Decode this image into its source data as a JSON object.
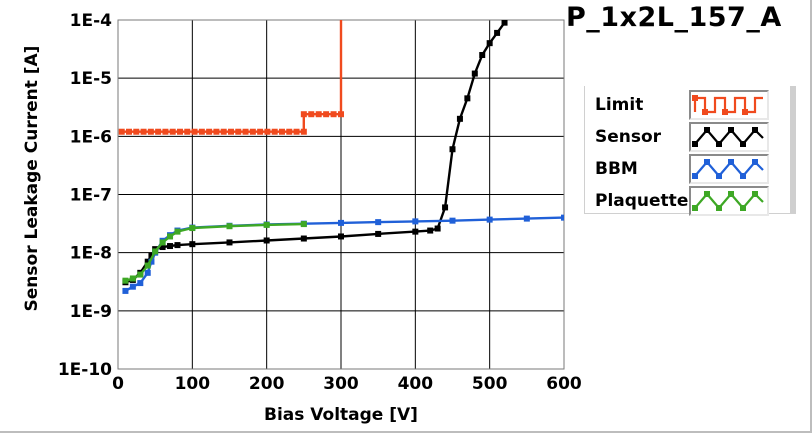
{
  "title": "P_1x2L_157_A",
  "chart_data": {
    "type": "line",
    "xlabel": "Bias Voltage [V]",
    "ylabel": "Sensor Leakage Current [A]",
    "xlim": [
      0,
      600
    ],
    "ylim": [
      1e-10,
      0.0001
    ],
    "yscale": "log",
    "grid": true,
    "legend_position": "right",
    "x_ticks": [
      {
        "value": 0,
        "label": "0"
      },
      {
        "value": 100,
        "label": "100"
      },
      {
        "value": 200,
        "label": "200"
      },
      {
        "value": 300,
        "label": "300"
      },
      {
        "value": 400,
        "label": "400"
      },
      {
        "value": 500,
        "label": "500"
      },
      {
        "value": 600,
        "label": "600"
      }
    ],
    "y_ticks": [
      {
        "value": 0.0001,
        "label": "1E-4"
      },
      {
        "value": 1e-05,
        "label": "1E-5"
      },
      {
        "value": 1e-06,
        "label": "1E-6"
      },
      {
        "value": 1e-07,
        "label": "1E-7"
      },
      {
        "value": 1e-08,
        "label": "1E-8"
      },
      {
        "value": 1e-09,
        "label": "1E-9"
      },
      {
        "value": 1e-10,
        "label": "1E-10"
      }
    ],
    "series": [
      {
        "name": "Limit",
        "color": "#f04a1e",
        "step": true,
        "x": [
          5,
          250,
          250,
          300,
          300
        ],
        "y": [
          1.2e-06,
          1.2e-06,
          2.4e-06,
          2.4e-06,
          0.0001
        ]
      },
      {
        "name": "Sensor",
        "color": "#000000",
        "step": false,
        "x": [
          10,
          20,
          30,
          40,
          45,
          50,
          60,
          70,
          80,
          100,
          150,
          200,
          250,
          300,
          350,
          400,
          420,
          430,
          440,
          450,
          460,
          470,
          480,
          490,
          500,
          510,
          520
        ],
        "y": [
          3.1e-09,
          3.4e-09,
          4.5e-09,
          7e-09,
          9e-09,
          1.15e-08,
          1.25e-08,
          1.3e-08,
          1.35e-08,
          1.4e-08,
          1.5e-08,
          1.62e-08,
          1.75e-08,
          1.9e-08,
          2.1e-08,
          2.3e-08,
          2.4e-08,
          2.6e-08,
          6e-08,
          6e-07,
          2e-06,
          4.5e-06,
          1.2e-05,
          2.5e-05,
          4e-05,
          6e-05,
          9e-05
        ]
      },
      {
        "name": "BBM",
        "color": "#2060d8",
        "step": false,
        "x": [
          10,
          20,
          30,
          40,
          45,
          50,
          60,
          70,
          80,
          100,
          150,
          200,
          250,
          300,
          350,
          400,
          450,
          500,
          550,
          600
        ],
        "y": [
          2.2e-09,
          2.6e-09,
          3e-09,
          4.5e-09,
          7e-09,
          1e-08,
          1.6e-08,
          2e-08,
          2.4e-08,
          2.7e-08,
          2.9e-08,
          3.05e-08,
          3.15e-08,
          3.25e-08,
          3.35e-08,
          3.45e-08,
          3.55e-08,
          3.7e-08,
          3.85e-08,
          4e-08
        ]
      },
      {
        "name": "Plaquette",
        "color": "#3ea825",
        "step": false,
        "x": [
          10,
          20,
          30,
          40,
          50,
          60,
          70,
          80,
          100,
          150,
          200,
          250
        ],
        "y": [
          3.3e-09,
          3.6e-09,
          4.2e-09,
          6e-09,
          1.05e-08,
          1.5e-08,
          1.9e-08,
          2.3e-08,
          2.65e-08,
          2.85e-08,
          3e-08,
          3.1e-08
        ]
      }
    ]
  }
}
